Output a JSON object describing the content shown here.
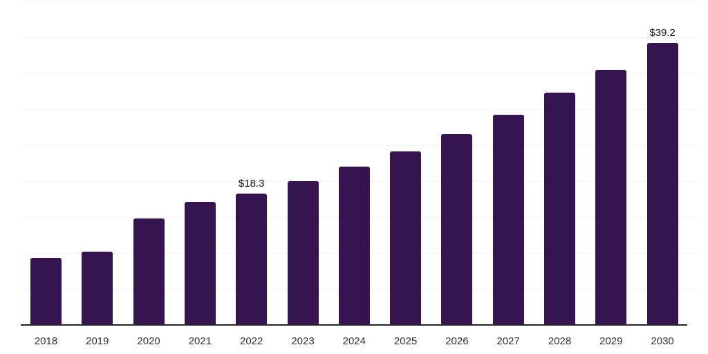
{
  "chart_data": {
    "type": "bar",
    "title": "",
    "xlabel": "",
    "ylabel": "",
    "categories": [
      "2018",
      "2019",
      "2020",
      "2021",
      "2022",
      "2023",
      "2024",
      "2025",
      "2026",
      "2027",
      "2028",
      "2029",
      "2030"
    ],
    "values": [
      9.3,
      10.2,
      14.8,
      17.1,
      18.3,
      20.0,
      22.0,
      24.1,
      26.5,
      29.2,
      32.3,
      35.5,
      39.2
    ],
    "data_labels": [
      {
        "category": "2022",
        "text": "$18.3"
      },
      {
        "category": "2030",
        "text": "$39.2"
      }
    ],
    "unit_prefix": "$",
    "ylim": [
      0,
      45
    ],
    "grid_step": 5,
    "grid": "horizontal-only",
    "legend": "none",
    "y_axis_labels": "none",
    "colors": {
      "bar": "#351450",
      "gridline": "#f2f2f2",
      "axis_line": "#262626",
      "tick_label": "#333333",
      "data_label": "#111111",
      "background": "#ffffff"
    }
  }
}
